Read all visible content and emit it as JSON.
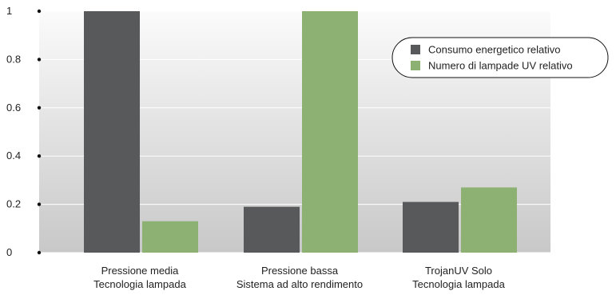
{
  "chart_data": {
    "type": "bar",
    "categories": [
      [
        "Pressione media",
        "Tecnologia lampada"
      ],
      [
        "Pressione bassa",
        "Sistema ad alto rendimento"
      ],
      [
        "TrojanUV Solo",
        "Tecnologia lampada"
      ]
    ],
    "series": [
      {
        "name": "Consumo energetico relativo",
        "values": [
          1.0,
          0.19,
          0.21
        ],
        "color": "#58595b"
      },
      {
        "name": "Numero di lampade UV relativo",
        "values": [
          0.13,
          1.0,
          0.27
        ],
        "color": "#8db173"
      }
    ],
    "y_ticks": [
      "0",
      "0.2",
      "0.4",
      "0.6",
      "0.8",
      "1"
    ],
    "ylim": [
      0,
      1
    ],
    "grid": true,
    "legend_position": "top-right",
    "title": "",
    "xlabel": "",
    "ylabel": ""
  }
}
